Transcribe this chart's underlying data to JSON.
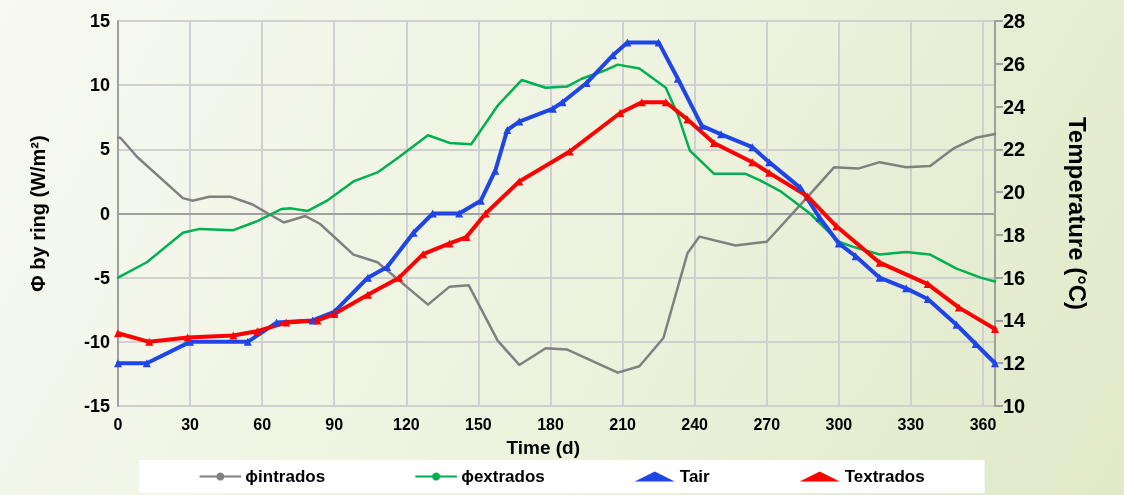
{
  "chart_data": {
    "type": "line",
    "xlabel": "Time (d)",
    "ylabel": "Φ by ring (W/m²)",
    "y2label": "Temperature (°C)",
    "xlim": [
      0,
      365
    ],
    "xticks": [
      0,
      30,
      60,
      90,
      120,
      150,
      180,
      210,
      240,
      270,
      300,
      330,
      360
    ],
    "ylim": [
      -15,
      15
    ],
    "yticks": [
      -15,
      -10,
      -5,
      0,
      5,
      10,
      15
    ],
    "y2lim": [
      10,
      28
    ],
    "y2ticks": [
      10,
      12,
      14,
      16,
      18,
      20,
      22,
      24,
      26,
      28
    ],
    "grid": true,
    "legend": "bottom",
    "line_style": "solid",
    "series": [
      {
        "name": "ϕintrados",
        "color": "#808080",
        "marker": "none",
        "x": [
          0,
          1,
          8,
          27,
          31,
          38,
          47,
          56,
          69,
          78,
          84,
          98,
          108,
          129,
          138,
          146,
          158,
          167,
          178,
          187,
          208,
          217,
          227,
          237,
          242,
          257,
          270,
          287,
          298,
          308,
          317,
          328,
          338,
          348,
          357,
          365
        ],
        "values": [
          5.9,
          5.9,
          4.4,
          1.2,
          1.0,
          1.3,
          1.3,
          0.7,
          -0.7,
          -0.2,
          -0.8,
          -3.2,
          -3.8,
          -7.1,
          -5.7,
          -5.6,
          -9.9,
          -11.8,
          -10.5,
          -10.6,
          -12.4,
          -11.9,
          -9.7,
          -3.1,
          -1.8,
          -2.5,
          -2.2,
          1.3,
          3.6,
          3.5,
          4.0,
          3.6,
          3.7,
          5.1,
          5.9,
          6.2
        ]
      },
      {
        "name": "ϕextrados",
        "color": "#00b050",
        "marker": "none",
        "x": [
          0,
          12,
          27,
          34,
          48,
          58,
          68,
          72,
          79,
          87,
          98,
          108,
          117,
          129,
          138,
          147,
          158,
          168,
          178,
          187,
          193,
          202,
          208,
          217,
          228,
          233,
          238,
          248,
          261,
          267,
          276,
          288,
          300,
          306,
          317,
          328,
          338,
          349,
          359,
          365
        ],
        "values": [
          -5.0,
          -3.8,
          -1.5,
          -1.2,
          -1.3,
          -0.6,
          0.35,
          0.4,
          0.2,
          1.0,
          2.5,
          3.2,
          4.4,
          6.1,
          5.5,
          5.4,
          8.4,
          10.4,
          9.8,
          9.9,
          10.5,
          11.1,
          11.6,
          11.3,
          9.8,
          7.7,
          4.9,
          3.1,
          3.1,
          2.6,
          1.7,
          0.0,
          -2.2,
          -2.6,
          -3.2,
          -3.0,
          -3.2,
          -4.3,
          -5.0,
          -5.3
        ]
      },
      {
        "name": "Tair",
        "color": "#1f45e6",
        "marker": "triangle",
        "axis": "y2",
        "x": [
          0,
          12,
          30,
          54,
          66,
          81,
          90,
          104,
          112,
          123,
          131,
          142,
          151,
          157,
          162,
          167,
          181,
          185,
          195,
          206,
          212,
          225,
          233,
          243,
          251,
          264,
          271,
          284,
          292,
          300,
          307,
          317,
          328,
          337,
          349,
          357,
          365
        ],
        "values": [
          12.0,
          12.0,
          13.0,
          13.0,
          13.9,
          14.0,
          14.4,
          16.0,
          16.5,
          18.1,
          19.0,
          19.0,
          19.6,
          21.0,
          22.9,
          23.3,
          23.9,
          24.2,
          25.1,
          26.4,
          27.0,
          27.0,
          25.3,
          23.1,
          22.7,
          22.1,
          21.4,
          20.2,
          18.8,
          17.6,
          17.0,
          16.0,
          15.5,
          15.0,
          13.8,
          12.9,
          12.0
        ]
      },
      {
        "name": "Textrados",
        "color": "#ff0000",
        "marker": "triangle",
        "axis": "y2",
        "x": [
          0,
          13,
          29,
          48,
          58,
          70,
          83,
          90,
          104,
          117,
          127,
          138,
          145,
          153,
          167,
          188,
          209,
          218,
          228,
          237,
          248,
          264,
          271,
          287,
          299,
          317,
          337,
          350,
          365
        ],
        "values": [
          13.4,
          13.0,
          13.2,
          13.3,
          13.5,
          13.9,
          14.0,
          14.3,
          15.2,
          16.0,
          17.1,
          17.6,
          17.9,
          19.0,
          20.5,
          21.9,
          23.7,
          24.2,
          24.2,
          23.4,
          22.3,
          21.4,
          20.9,
          19.8,
          18.4,
          16.7,
          15.7,
          14.6,
          13.6
        ]
      }
    ]
  }
}
